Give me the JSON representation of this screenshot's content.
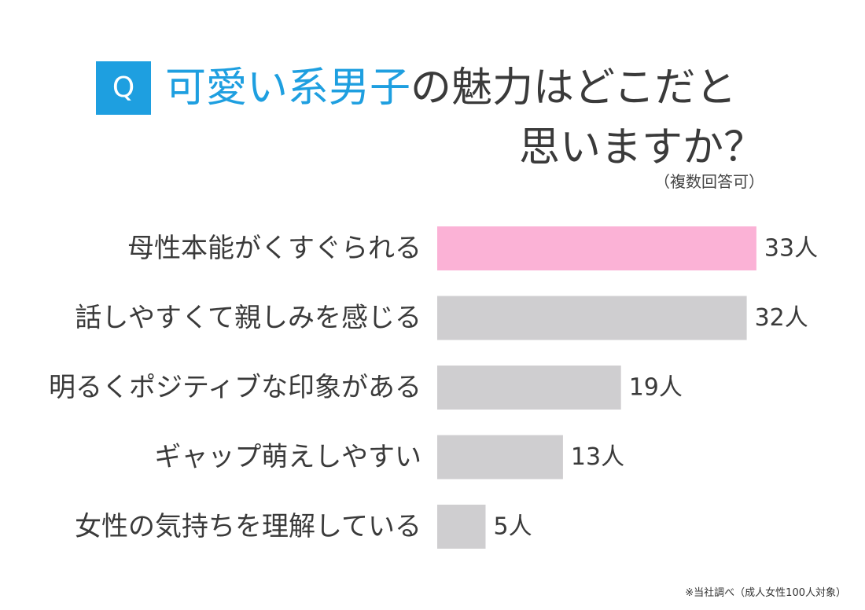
{
  "header": {
    "badge": "Q",
    "title_accent": "可愛い系男子",
    "title_rest": "の魅力はどこだと",
    "title_line2": "思いますか？",
    "subtitle": "（複数回答可）"
  },
  "footnote": "※当社調べ（成人女性100人対象）",
  "chart_data": {
    "type": "bar",
    "orientation": "horizontal",
    "categories": [
      "母性本能がくすぐられる",
      "話しやすくて親しみを感じる",
      "明るくポジティブな印象がある",
      "ギャップ萌えしやすい",
      "女性の気持ちを理解している"
    ],
    "values": [
      33,
      32,
      19,
      13,
      5
    ],
    "value_labels": [
      "33人",
      "32人",
      "19人",
      "13人",
      "5人"
    ],
    "highlight_index": 0,
    "colors": {
      "highlight": "#fbb2d6",
      "default": "#cfced0"
    },
    "grid": false,
    "legend": "none"
  }
}
